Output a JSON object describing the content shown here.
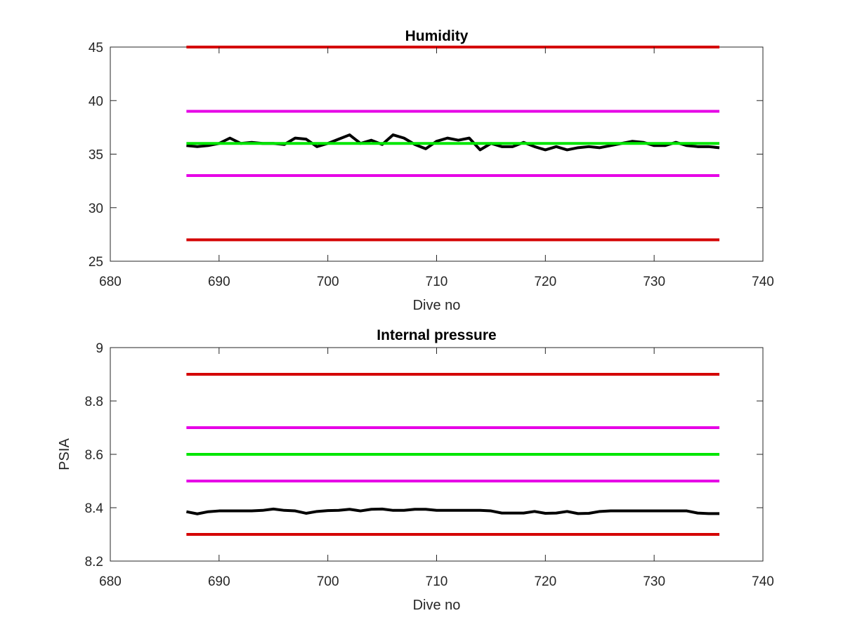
{
  "chart_data": [
    {
      "type": "line",
      "title": "Humidity",
      "xlabel": "Dive no",
      "ylabel": "",
      "xlim": [
        680,
        740
      ],
      "ylim": [
        25,
        45
      ],
      "xticks": [
        680,
        690,
        700,
        710,
        720,
        730,
        740
      ],
      "yticks": [
        25,
        30,
        35,
        40,
        45
      ],
      "x_tick_labels": [
        "680",
        "690",
        "700",
        "710",
        "720",
        "730",
        "740"
      ],
      "y_tick_labels": [
        "25",
        "30",
        "35",
        "40",
        "45"
      ],
      "grid": false,
      "series": [
        {
          "color": "#d40000",
          "x": [
            687,
            736
          ],
          "y": [
            45,
            45
          ]
        },
        {
          "color": "#e600e6",
          "x": [
            687,
            736
          ],
          "y": [
            39,
            39
          ]
        },
        {
          "color": "#e600e6",
          "x": [
            687,
            736
          ],
          "y": [
            33,
            33
          ]
        },
        {
          "color": "#d40000",
          "x": [
            687,
            736
          ],
          "y": [
            27,
            27
          ]
        },
        {
          "color": "#000000",
          "x": [
            687,
            688,
            689,
            690,
            691,
            692,
            693,
            694,
            695,
            696,
            697,
            698,
            699,
            700,
            701,
            702,
            703,
            704,
            705,
            706,
            707,
            708,
            709,
            710,
            711,
            712,
            713,
            714,
            715,
            716,
            717,
            718,
            719,
            720,
            721,
            722,
            723,
            724,
            725,
            726,
            727,
            728,
            729,
            730,
            731,
            732,
            733,
            734,
            735,
            736
          ],
          "y": [
            35.8,
            35.7,
            35.8,
            36.0,
            36.5,
            36.0,
            36.1,
            36.0,
            36.0,
            35.9,
            36.5,
            36.4,
            35.7,
            36.0,
            36.4,
            36.8,
            36.0,
            36.3,
            35.9,
            36.8,
            36.5,
            35.9,
            35.5,
            36.2,
            36.5,
            36.3,
            36.5,
            35.4,
            36.0,
            35.7,
            35.7,
            36.1,
            35.7,
            35.4,
            35.7,
            35.4,
            35.6,
            35.7,
            35.6,
            35.8,
            36.0,
            36.2,
            36.1,
            35.8,
            35.8,
            36.1,
            35.8,
            35.7,
            35.7,
            35.6
          ]
        },
        {
          "color": "#00e600",
          "x": [
            687,
            736
          ],
          "y": [
            36,
            36
          ]
        }
      ]
    },
    {
      "type": "line",
      "title": "Internal pressure",
      "xlabel": "Dive no",
      "ylabel": "PSIA",
      "xlim": [
        680,
        740
      ],
      "ylim": [
        8.2,
        9
      ],
      "xticks": [
        680,
        690,
        700,
        710,
        720,
        730,
        740
      ],
      "yticks": [
        8.2,
        8.4,
        8.6,
        8.8,
        9
      ],
      "x_tick_labels": [
        "680",
        "690",
        "700",
        "710",
        "720",
        "730",
        "740"
      ],
      "y_tick_labels": [
        "8.2",
        "8.4",
        "8.6",
        "8.8",
        "9"
      ],
      "grid": false,
      "series": [
        {
          "color": "#d40000",
          "x": [
            687,
            736
          ],
          "y": [
            8.9,
            8.9
          ]
        },
        {
          "color": "#e600e6",
          "x": [
            687,
            736
          ],
          "y": [
            8.7,
            8.7
          ]
        },
        {
          "color": "#00e600",
          "x": [
            687,
            736
          ],
          "y": [
            8.6,
            8.6
          ]
        },
        {
          "color": "#e600e6",
          "x": [
            687,
            736
          ],
          "y": [
            8.5,
            8.5
          ]
        },
        {
          "color": "#d40000",
          "x": [
            687,
            736
          ],
          "y": [
            8.3,
            8.3
          ]
        },
        {
          "color": "#000000",
          "x": [
            687,
            688,
            689,
            690,
            691,
            692,
            693,
            694,
            695,
            696,
            697,
            698,
            699,
            700,
            701,
            702,
            703,
            704,
            705,
            706,
            707,
            708,
            709,
            710,
            711,
            712,
            713,
            714,
            715,
            716,
            717,
            718,
            719,
            720,
            721,
            722,
            723,
            724,
            725,
            726,
            727,
            728,
            729,
            730,
            731,
            732,
            733,
            734,
            735,
            736
          ],
          "y": [
            8.385,
            8.377,
            8.385,
            8.388,
            8.388,
            8.388,
            8.388,
            8.39,
            8.395,
            8.39,
            8.388,
            8.379,
            8.386,
            8.389,
            8.39,
            8.394,
            8.388,
            8.394,
            8.395,
            8.39,
            8.39,
            8.394,
            8.394,
            8.39,
            8.39,
            8.39,
            8.39,
            8.39,
            8.388,
            8.38,
            8.38,
            8.38,
            8.386,
            8.379,
            8.38,
            8.386,
            8.378,
            8.379,
            8.386,
            8.388,
            8.388,
            8.388,
            8.388,
            8.388,
            8.388,
            8.388,
            8.388,
            8.38,
            8.378,
            8.378
          ]
        }
      ]
    }
  ]
}
